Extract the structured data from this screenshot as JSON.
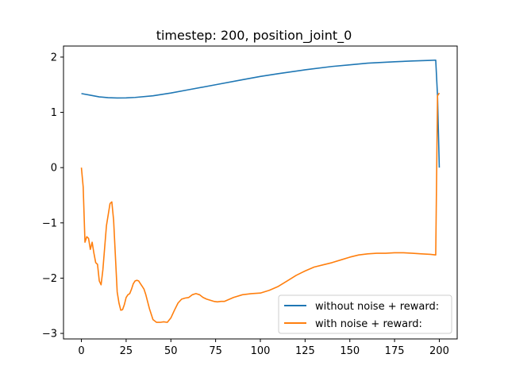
{
  "chart_data": {
    "type": "line",
    "title": "timestep: 200, position_joint_0",
    "xlabel": "",
    "ylabel": "",
    "xlim": [
      -10,
      210
    ],
    "ylim": [
      -3.1,
      2.2
    ],
    "xticks": [
      0,
      25,
      50,
      75,
      100,
      125,
      150,
      175,
      200
    ],
    "yticks": [
      2,
      1,
      0,
      -1,
      -2,
      -3
    ],
    "ytick_labels": [
      "2",
      "1",
      "0",
      "−1",
      "−2",
      "−3"
    ],
    "grid": false,
    "legend": "lower-right",
    "series": [
      {
        "name": "without noise + reward:",
        "color": "#1f77b4",
        "x": [
          0,
          5,
          10,
          15,
          20,
          25,
          30,
          40,
          50,
          60,
          75,
          90,
          100,
          110,
          125,
          140,
          150,
          160,
          175,
          185,
          190,
          195,
          198,
          199,
          200
        ],
        "y": [
          1.34,
          1.31,
          1.28,
          1.265,
          1.26,
          1.262,
          1.27,
          1.3,
          1.35,
          1.41,
          1.5,
          1.59,
          1.65,
          1.7,
          1.77,
          1.83,
          1.86,
          1.89,
          1.915,
          1.93,
          1.935,
          1.94,
          1.945,
          1.3,
          0.0
        ]
      },
      {
        "name": "with noise + reward:",
        "color": "#ff7f0e",
        "x": [
          0,
          1,
          2,
          3,
          4,
          5,
          6,
          7,
          8,
          9,
          10,
          11,
          12,
          13,
          14,
          15,
          16,
          17,
          18,
          19,
          20,
          21,
          22,
          23,
          24,
          25,
          26,
          27,
          28,
          29,
          30,
          31,
          32,
          33,
          34,
          35,
          36,
          38,
          40,
          42,
          44,
          46,
          48,
          50,
          52,
          54,
          56,
          58,
          60,
          62,
          64,
          66,
          68,
          70,
          72,
          74,
          76,
          78,
          80,
          85,
          90,
          95,
          100,
          105,
          110,
          115,
          120,
          125,
          130,
          135,
          140,
          145,
          150,
          155,
          160,
          165,
          170,
          175,
          180,
          185,
          190,
          195,
          198,
          199,
          200
        ],
        "y": [
          0.0,
          -0.35,
          -1.35,
          -1.25,
          -1.28,
          -1.48,
          -1.35,
          -1.55,
          -1.72,
          -1.75,
          -2.05,
          -2.12,
          -1.85,
          -1.45,
          -1.05,
          -0.85,
          -0.65,
          -0.62,
          -0.95,
          -1.6,
          -2.25,
          -2.45,
          -2.58,
          -2.57,
          -2.48,
          -2.35,
          -2.3,
          -2.28,
          -2.2,
          -2.1,
          -2.05,
          -2.04,
          -2.05,
          -2.1,
          -2.15,
          -2.2,
          -2.3,
          -2.55,
          -2.75,
          -2.8,
          -2.8,
          -2.79,
          -2.8,
          -2.72,
          -2.58,
          -2.45,
          -2.38,
          -2.36,
          -2.35,
          -2.3,
          -2.28,
          -2.3,
          -2.35,
          -2.38,
          -2.4,
          -2.42,
          -2.43,
          -2.42,
          -2.42,
          -2.35,
          -2.3,
          -2.28,
          -2.27,
          -2.22,
          -2.15,
          -2.05,
          -1.95,
          -1.87,
          -1.8,
          -1.76,
          -1.72,
          -1.67,
          -1.62,
          -1.58,
          -1.56,
          -1.55,
          -1.55,
          -1.54,
          -1.54,
          -1.55,
          -1.56,
          -1.57,
          -1.58,
          1.3,
          1.35
        ]
      }
    ]
  }
}
